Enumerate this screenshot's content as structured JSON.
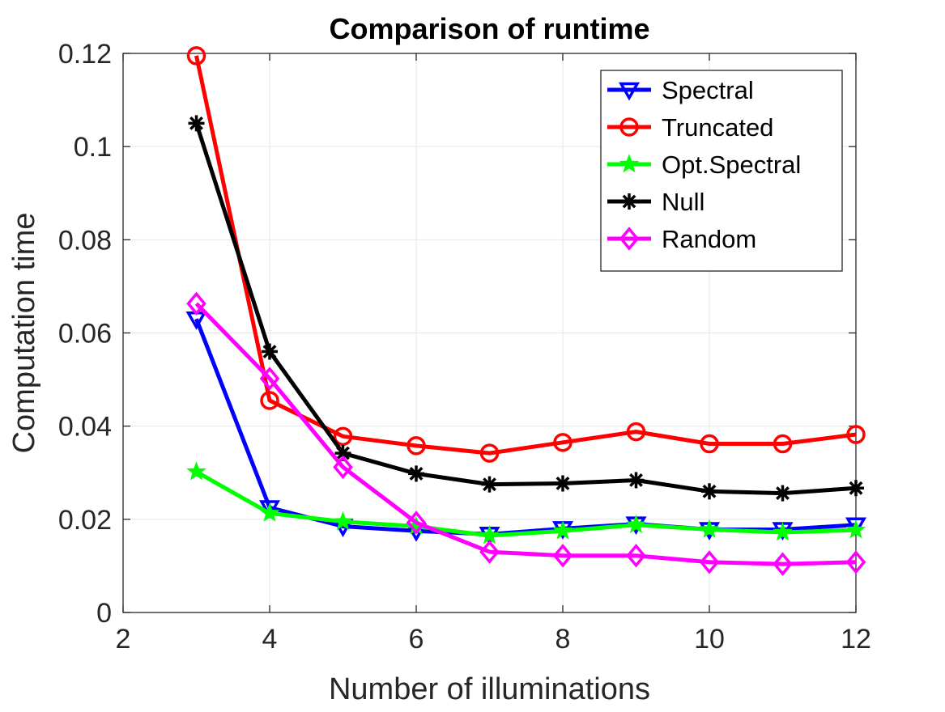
{
  "chart_data": {
    "type": "line",
    "title": "Comparison of runtime",
    "xlabel": "Number of illuminations",
    "ylabel": "Computation time",
    "xlim": [
      2,
      12
    ],
    "ylim": [
      0,
      0.12
    ],
    "xticks": [
      2,
      4,
      6,
      8,
      10,
      12
    ],
    "xtick_labels": [
      "2",
      "4",
      "6",
      "8",
      "10",
      "12"
    ],
    "yticks": [
      0,
      0.02,
      0.04,
      0.06,
      0.08,
      0.1,
      0.12
    ],
    "ytick_labels": [
      "0",
      "0.02",
      "0.04",
      "0.06",
      "0.08",
      "0.1",
      "0.12"
    ],
    "grid": true,
    "legend_position": "top-right",
    "x": [
      3,
      4,
      5,
      6,
      7,
      8,
      9,
      10,
      11,
      12
    ],
    "series": [
      {
        "name": "Spectral",
        "color": "#0000ff",
        "marker": "triangle-down",
        "values": [
          0.063,
          0.0225,
          0.0185,
          0.0175,
          0.0168,
          0.018,
          0.019,
          0.0178,
          0.0178,
          0.0188
        ]
      },
      {
        "name": "Truncated",
        "color": "#ff0000",
        "marker": "circle",
        "values": [
          0.1195,
          0.0455,
          0.0378,
          0.0358,
          0.0342,
          0.0365,
          0.0388,
          0.0362,
          0.0362,
          0.0382
        ]
      },
      {
        "name": "Opt.Spectral",
        "color": "#00ff00",
        "marker": "star",
        "values": [
          0.0302,
          0.0213,
          0.0195,
          0.0185,
          0.0165,
          0.0175,
          0.0188,
          0.0178,
          0.0172,
          0.0177
        ]
      },
      {
        "name": "Null",
        "color": "#000000",
        "marker": "asterisk",
        "values": [
          0.105,
          0.056,
          0.0342,
          0.0298,
          0.0275,
          0.0277,
          0.0284,
          0.026,
          0.0256,
          0.0267
        ]
      },
      {
        "name": "Random",
        "color": "#ff00ff",
        "marker": "diamond",
        "values": [
          0.0663,
          0.0502,
          0.0312,
          0.0193,
          0.013,
          0.0122,
          0.0122,
          0.0108,
          0.0104,
          0.0108
        ]
      }
    ]
  }
}
